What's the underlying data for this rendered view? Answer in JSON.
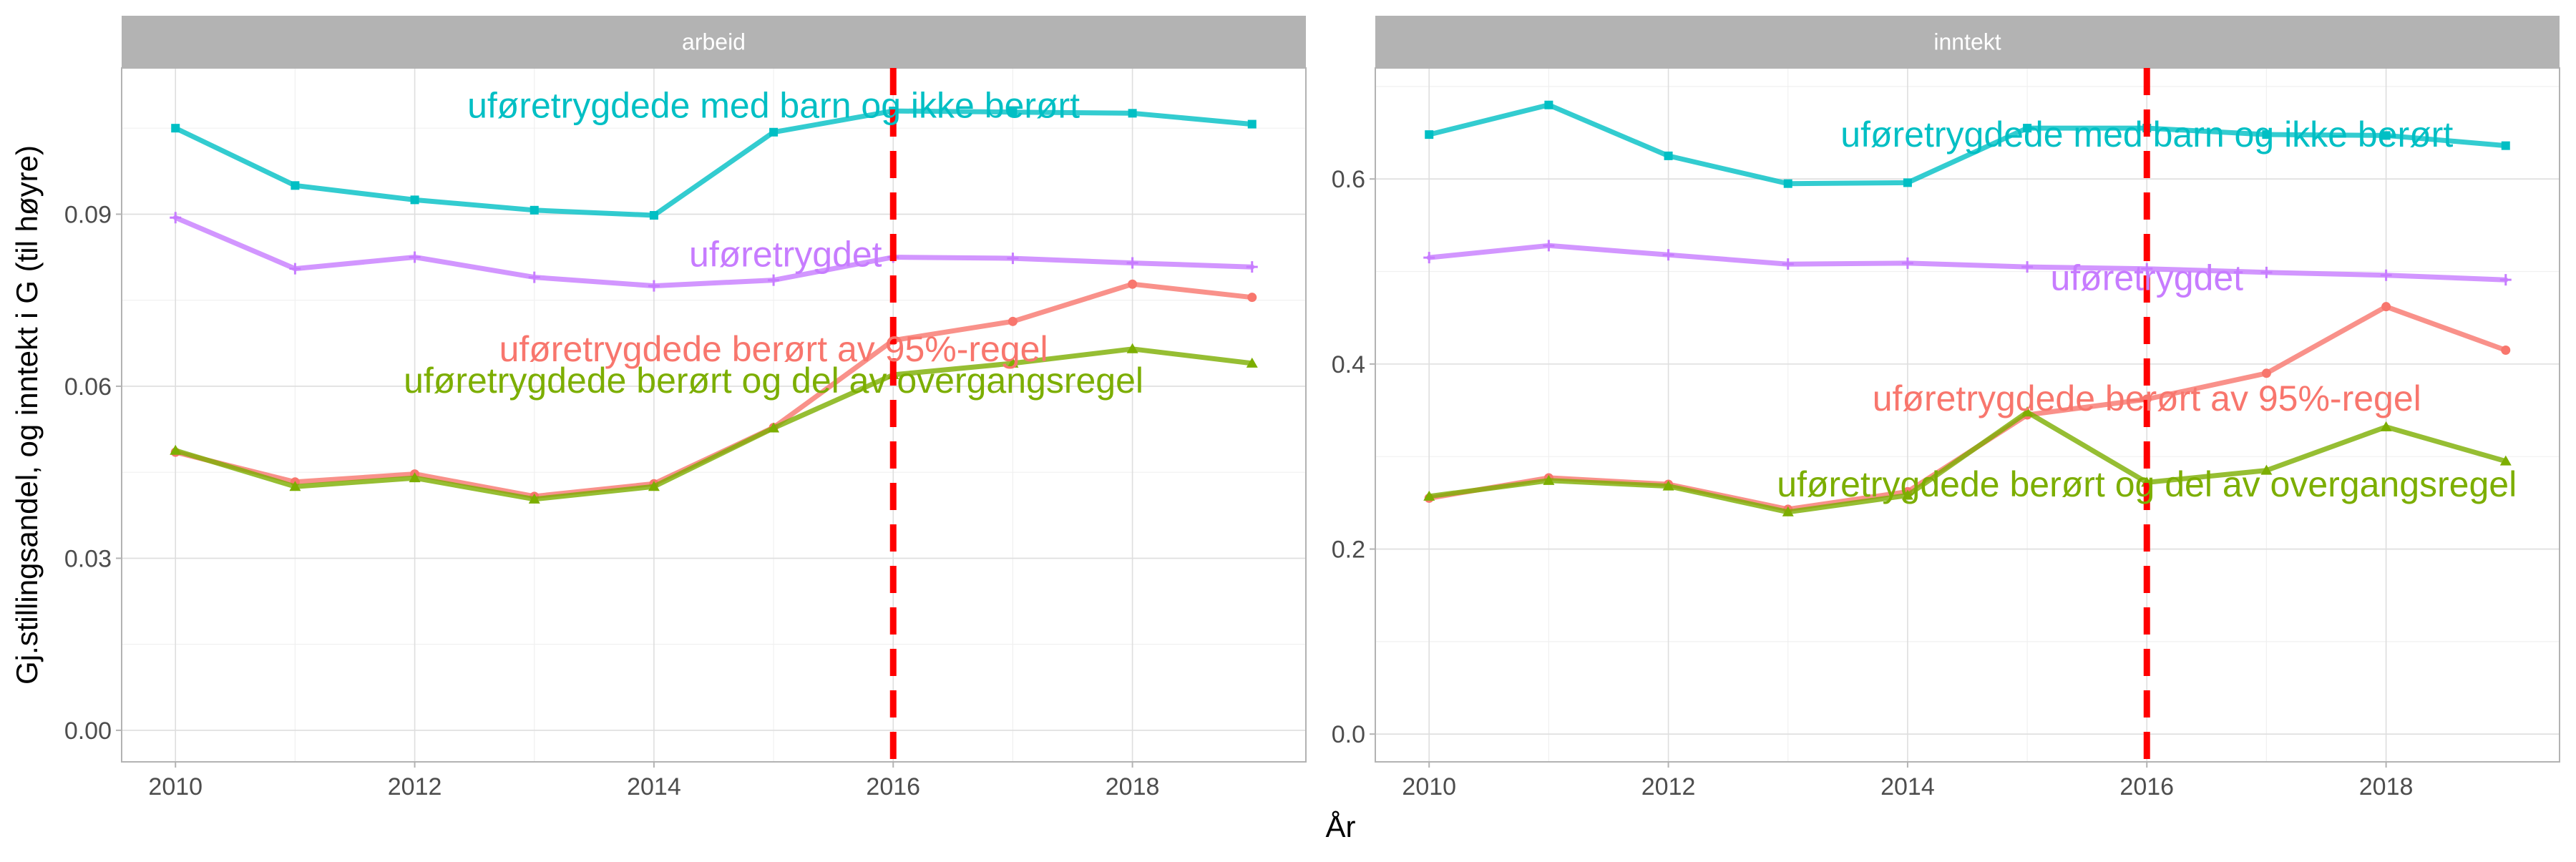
{
  "chart_data": {
    "type": "line",
    "xlabel": "År",
    "ylabel": "Gj.stillingsandel, og inntekt i G (til høyre)",
    "x_ticks": [
      2010,
      2012,
      2014,
      2016,
      2018
    ],
    "reference_line": {
      "x": 2016,
      "color": "#ff0000",
      "style": "dashed"
    },
    "grid": true,
    "legend": "none (direct labels)",
    "panels": [
      {
        "strip": "arbeid",
        "xlim": [
          2009.55,
          2019.45
        ],
        "ylim": [
          -0.0055,
          0.1155
        ],
        "y_ticks": [
          0.0,
          0.03,
          0.06,
          0.09
        ],
        "y_tick_labels": [
          "0.00",
          "0.03",
          "0.06",
          "0.09"
        ],
        "series": [
          {
            "name": "uføretrygdede med barn og ikke berørt",
            "color": "#00BFC4",
            "marker": "square",
            "x": [
              2010,
              2011,
              2012,
              2013,
              2014,
              2015,
              2016,
              2017,
              2018,
              2019
            ],
            "y": [
              0.105,
              0.095,
              0.0925,
              0.0907,
              0.0898,
              0.1043,
              0.108,
              0.1078,
              0.1076,
              0.1057
            ],
            "label": {
              "text": "uføretrygdede med barn og ikke berørt",
              "x": 2015.0,
              "y": 0.1085
            }
          },
          {
            "name": "uføretrygdet",
            "color": "#C77CFF",
            "marker": "plus",
            "x": [
              2010,
              2011,
              2012,
              2013,
              2014,
              2015,
              2016,
              2017,
              2018,
              2019
            ],
            "y": [
              0.0894,
              0.0805,
              0.0825,
              0.079,
              0.0775,
              0.0785,
              0.0825,
              0.0823,
              0.0815,
              0.0808
            ],
            "label": {
              "text": "uføretrygdet",
              "x": 2015.1,
              "y": 0.0825
            }
          },
          {
            "name": "uføretrygdede berørt av 95%-regel",
            "color": "#F8766D",
            "marker": "circle",
            "x": [
              2010,
              2011,
              2012,
              2013,
              2014,
              2015,
              2016,
              2017,
              2018,
              2019
            ],
            "y": [
              0.0485,
              0.0433,
              0.0447,
              0.0408,
              0.043,
              0.0528,
              0.068,
              0.0713,
              0.0778,
              0.0755
            ],
            "label": {
              "text": "uføretrygdede berørt av 95%-regel",
              "x": 2015.0,
              "y": 0.066
            }
          },
          {
            "name": "uføretrygdede berørt og del av overgangsregel",
            "color": "#7CAE00",
            "marker": "triangle",
            "x": [
              2010,
              2011,
              2012,
              2013,
              2014,
              2015,
              2016,
              2017,
              2018,
              2019
            ],
            "y": [
              0.0488,
              0.0425,
              0.044,
              0.0403,
              0.0425,
              0.0527,
              0.062,
              0.064,
              0.0665,
              0.064
            ],
            "label": {
              "text": "uføretrygdede berørt og del av overgangsregel",
              "x": 2015.0,
              "y": 0.0605
            }
          }
        ]
      },
      {
        "strip": "inntekt",
        "xlim": [
          2009.55,
          2019.45
        ],
        "ylim": [
          -0.03,
          0.72
        ],
        "y_ticks": [
          0.0,
          0.2,
          0.4,
          0.6
        ],
        "y_tick_labels": [
          "0.0",
          "0.2",
          "0.4",
          "0.6"
        ],
        "series": [
          {
            "name": "uføretrygdede med barn og ikke berørt",
            "color": "#00BFC4",
            "marker": "square",
            "x": [
              2010,
              2011,
              2012,
              2013,
              2014,
              2015,
              2016,
              2017,
              2018,
              2019
            ],
            "y": [
              0.648,
              0.68,
              0.625,
              0.595,
              0.596,
              0.655,
              0.655,
              0.648,
              0.647,
              0.636
            ],
            "label": {
              "text": "uføretrygdede med barn og ikke berørt",
              "x": 2016.0,
              "y": 0.645
            }
          },
          {
            "name": "uføretrygdet",
            "color": "#C77CFF",
            "marker": "plus",
            "x": [
              2010,
              2011,
              2012,
              2013,
              2014,
              2015,
              2016,
              2017,
              2018,
              2019
            ],
            "y": [
              0.515,
              0.528,
              0.518,
              0.508,
              0.509,
              0.505,
              0.503,
              0.499,
              0.496,
              0.491
            ],
            "label": {
              "text": "uføretrygdet",
              "x": 2016.0,
              "y": 0.49
            }
          },
          {
            "name": "uføretrygdede berørt av 95%-regel",
            "color": "#F8766D",
            "marker": "circle",
            "x": [
              2010,
              2011,
              2012,
              2013,
              2014,
              2015,
              2016,
              2017,
              2018,
              2019
            ],
            "y": [
              0.255,
              0.277,
              0.27,
              0.243,
              0.262,
              0.345,
              0.362,
              0.39,
              0.462,
              0.415
            ],
            "label": {
              "text": "uføretrygdede berørt av 95%-regel",
              "x": 2016.0,
              "y": 0.36
            }
          },
          {
            "name": "uføretrygdede berørt og del av overgangsregel",
            "color": "#7CAE00",
            "marker": "triangle",
            "x": [
              2010,
              2011,
              2012,
              2013,
              2014,
              2015,
              2016,
              2017,
              2018,
              2019
            ],
            "y": [
              0.257,
              0.274,
              0.268,
              0.24,
              0.258,
              0.348,
              0.272,
              0.285,
              0.332,
              0.295
            ],
            "label": {
              "text": "uføretrygdede berørt og del av overgangsregel",
              "x": 2016.0,
              "y": 0.267
            }
          }
        ]
      }
    ]
  }
}
